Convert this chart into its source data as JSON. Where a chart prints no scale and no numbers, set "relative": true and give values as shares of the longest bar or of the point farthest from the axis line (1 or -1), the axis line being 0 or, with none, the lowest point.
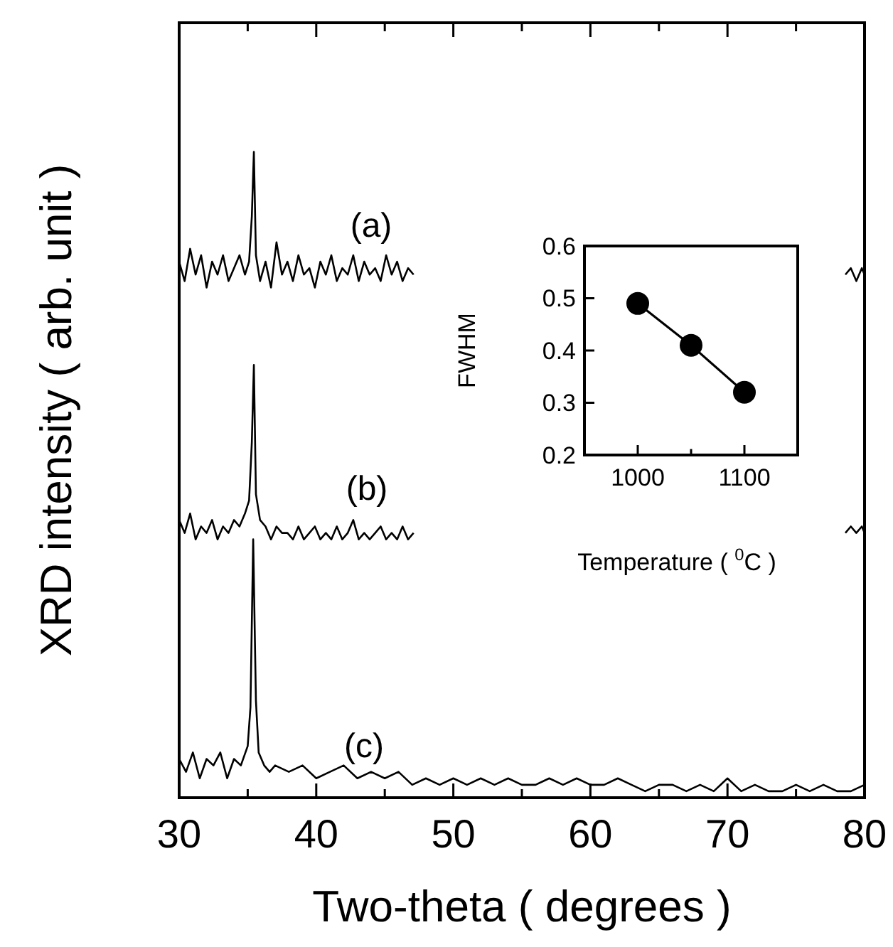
{
  "chart_data": [
    {
      "type": "line",
      "relative": true,
      "xlabel": "Two-theta ( degrees )",
      "ylabel": "XRD intensity ( arb. unit )",
      "xlim": [
        30,
        80
      ],
      "xticks": [
        30,
        {
          "value": 35,
          "label": null
        },
        40,
        {
          "value": 45,
          "label": null
        },
        50,
        {
          "value": 55,
          "label": null
        },
        60,
        {
          "value": 65,
          "label": null
        },
        70,
        {
          "value": 75,
          "label": null
        },
        80
      ],
      "tick_labels": "x",
      "series": [
        {
          "color": "#000000",
          "x": [
            30,
            30.4,
            30.8,
            31.2,
            31.6,
            32,
            32.4,
            32.8,
            33.2,
            33.6,
            34,
            34.4,
            34.8,
            35.1,
            35.3,
            35.45,
            35.6,
            35.9,
            36.3,
            36.7,
            37.1,
            37.5,
            37.9,
            38.3,
            38.7,
            39.1,
            39.5,
            39.9,
            40.3,
            40.7,
            41.1,
            41.5,
            41.9,
            42.3,
            42.7,
            43.1,
            43.5,
            43.9,
            44.3,
            44.7,
            45.1,
            45.5,
            45.9,
            46.3,
            46.7,
            47.1,
            60,
            78.6,
            79,
            79.4,
            79.8,
            80
          ],
          "values": [
            0.83,
            0.8,
            0.85,
            0.81,
            0.84,
            0.79,
            0.83,
            0.81,
            0.84,
            0.8,
            0.82,
            0.84,
            0.81,
            0.83,
            0.9,
            1.0,
            0.84,
            0.8,
            0.83,
            0.79,
            0.86,
            0.81,
            0.83,
            0.8,
            0.84,
            0.81,
            0.82,
            0.79,
            0.83,
            0.81,
            0.84,
            0.8,
            0.82,
            0.81,
            0.84,
            0.8,
            0.83,
            0.81,
            0.82,
            0.8,
            0.84,
            0.81,
            0.83,
            0.8,
            0.82,
            0.81,
            null,
            0.81,
            0.82,
            0.8,
            0.82,
            0.81
          ]
        },
        {
          "color": "#000000",
          "x": [
            30,
            30.4,
            30.8,
            31.2,
            31.6,
            32,
            32.4,
            32.8,
            33.2,
            33.6,
            34,
            34.4,
            34.8,
            35.1,
            35.3,
            35.45,
            35.6,
            35.9,
            36.3,
            36.7,
            37.1,
            37.5,
            37.9,
            38.3,
            38.7,
            39.1,
            39.5,
            39.9,
            40.3,
            40.7,
            41.1,
            41.5,
            41.9,
            42.3,
            42.7,
            43.1,
            43.5,
            43.9,
            44.3,
            44.7,
            45.1,
            45.5,
            45.9,
            46.3,
            46.7,
            47.1,
            60,
            78.6,
            79,
            79.4,
            79.8,
            80
          ],
          "values": [
            0.43,
            0.41,
            0.44,
            0.4,
            0.42,
            0.41,
            0.43,
            0.4,
            0.42,
            0.41,
            0.43,
            0.42,
            0.44,
            0.46,
            0.55,
            0.67,
            0.47,
            0.43,
            0.42,
            0.4,
            0.42,
            0.41,
            0.41,
            0.4,
            0.42,
            0.4,
            0.41,
            0.42,
            0.4,
            0.41,
            0.4,
            0.42,
            0.4,
            0.41,
            0.43,
            0.4,
            0.41,
            0.4,
            0.41,
            0.42,
            0.4,
            0.41,
            0.4,
            0.42,
            0.4,
            0.41,
            null,
            0.41,
            0.42,
            0.41,
            0.42,
            0.41
          ]
        },
        {
          "color": "#000000",
          "x": [
            30,
            30.5,
            31,
            31.5,
            32,
            32.5,
            33,
            33.5,
            34,
            34.5,
            35,
            35.2,
            35.4,
            35.6,
            35.8,
            36.2,
            36.6,
            37,
            38,
            39,
            40,
            41,
            42,
            43,
            44,
            45,
            46,
            47,
            48,
            49,
            50,
            51,
            52,
            53,
            54,
            55,
            56,
            57,
            58,
            59,
            60,
            61,
            62,
            63,
            64,
            65,
            66,
            67,
            68,
            69,
            70,
            71,
            72,
            73,
            74,
            75,
            76,
            77,
            78,
            79,
            80
          ],
          "values": [
            0.06,
            0.04,
            0.07,
            0.03,
            0.06,
            0.05,
            0.07,
            0.03,
            0.06,
            0.05,
            0.08,
            0.14,
            0.4,
            0.15,
            0.07,
            0.05,
            0.04,
            0.05,
            0.04,
            0.05,
            0.03,
            0.04,
            0.05,
            0.03,
            0.04,
            0.03,
            0.04,
            0.02,
            0.03,
            0.02,
            0.03,
            0.02,
            0.03,
            0.02,
            0.03,
            0.02,
            0.02,
            0.03,
            0.02,
            0.03,
            0.02,
            0.02,
            0.03,
            0.02,
            0.01,
            0.02,
            0.02,
            0.01,
            0.02,
            0.01,
            0.03,
            0.01,
            0.02,
            0.01,
            0.01,
            0.02,
            0.01,
            0.02,
            0.01,
            0.01,
            0.02
          ]
        }
      ],
      "annotations": [
        "(a)",
        "(b)",
        "(c)"
      ]
    },
    {
      "type": "line",
      "xlabel": "Temperature ( $^{0}$C )",
      "ylabel": "FWHM",
      "x": [
        1000,
        1050,
        1100
      ],
      "values": [
        0.49,
        0.41,
        0.32
      ],
      "color": "#000000",
      "marker": "circle",
      "xlim": [
        950,
        1150
      ],
      "xticks": [
        1000,
        {
          "value": 1050,
          "label": null
        },
        1100
      ],
      "ylim": [
        0.2,
        0.6
      ],
      "yticks": [
        0.2,
        0.3,
        0.4,
        0.5,
        0.6
      ]
    }
  ]
}
